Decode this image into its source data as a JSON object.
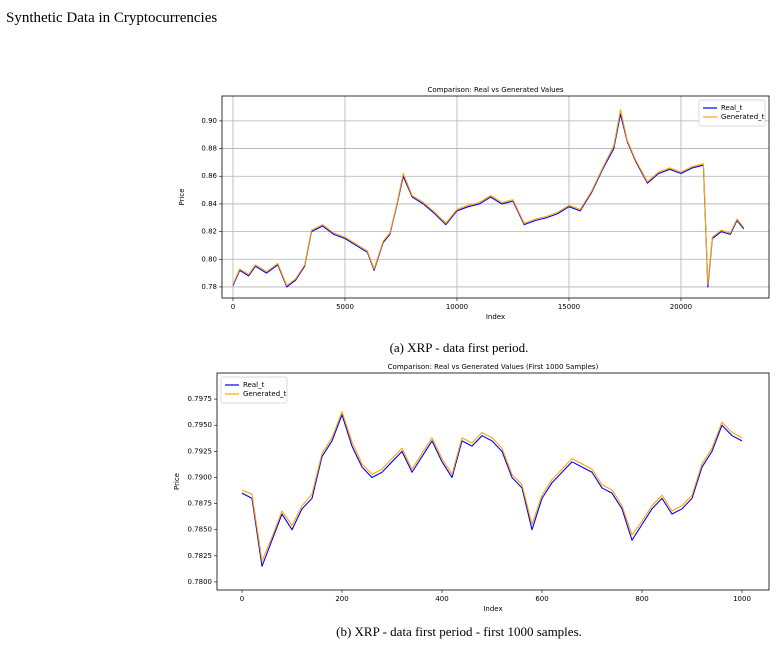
{
  "header": "Synthetic Data in Cryptocurrencies",
  "chart_data": [
    {
      "type": "line",
      "title": "Comparison: Real vs Generated Values",
      "xlabel": "Index",
      "ylabel": "Price",
      "caption": "(a) XRP - data first period.",
      "grid": true,
      "legend": "upper right",
      "xlim": [
        -491,
        23929
      ],
      "xticks": [
        0,
        5000,
        10000,
        15000,
        20000
      ],
      "ylim": [
        0.772,
        0.918
      ],
      "yticks": [
        0.78,
        {
          "value": 0.8,
          "label": "0.80"
        },
        0.82,
        0.84,
        0.86,
        0.88,
        {
          "value": 0.9,
          "label": "0.90"
        }
      ],
      "x": [
        0,
        300,
        700,
        1000,
        1500,
        2000,
        2400,
        2800,
        3200,
        3500,
        4000,
        4500,
        5000,
        5500,
        6000,
        6300,
        6700,
        7000,
        7300,
        7600,
        8000,
        8500,
        9000,
        9500,
        10000,
        10500,
        11000,
        11500,
        12000,
        12500,
        13000,
        13500,
        14000,
        14500,
        15000,
        15500,
        16000,
        16500,
        17000,
        17300,
        17600,
        18000,
        18500,
        19000,
        19500,
        20000,
        20500,
        21000,
        21200,
        21400,
        21800,
        22200,
        22500,
        22800
      ],
      "series": [
        {
          "name": "Real_t",
          "color": "#0000ff",
          "values": [
            0.781,
            0.792,
            0.788,
            0.795,
            0.79,
            0.796,
            0.78,
            0.785,
            0.795,
            0.82,
            0.824,
            0.818,
            0.815,
            0.81,
            0.805,
            0.792,
            0.812,
            0.818,
            0.838,
            0.86,
            0.845,
            0.84,
            0.833,
            0.825,
            0.835,
            0.838,
            0.84,
            0.845,
            0.84,
            0.842,
            0.825,
            0.828,
            0.83,
            0.833,
            0.838,
            0.835,
            0.848,
            0.865,
            0.88,
            0.905,
            0.885,
            0.87,
            0.855,
            0.862,
            0.865,
            0.862,
            0.866,
            0.868,
            0.78,
            0.815,
            0.82,
            0.818,
            0.828,
            0.822
          ]
        },
        {
          "name": "Generated_t",
          "color": "#ffa500",
          "values": [
            0.782,
            0.793,
            0.789,
            0.796,
            0.791,
            0.797,
            0.781,
            0.786,
            0.796,
            0.821,
            0.825,
            0.819,
            0.816,
            0.811,
            0.806,
            0.793,
            0.813,
            0.819,
            0.839,
            0.862,
            0.846,
            0.841,
            0.834,
            0.826,
            0.836,
            0.839,
            0.841,
            0.846,
            0.841,
            0.843,
            0.826,
            0.829,
            0.831,
            0.834,
            0.839,
            0.836,
            0.849,
            0.866,
            0.882,
            0.908,
            0.886,
            0.871,
            0.856,
            0.863,
            0.866,
            0.863,
            0.867,
            0.869,
            0.782,
            0.816,
            0.821,
            0.819,
            0.829,
            0.823
          ]
        }
      ]
    },
    {
      "type": "line",
      "title": "Comparison: Real vs Generated Values (First 1000 Samples)",
      "xlabel": "Index",
      "ylabel": "Price",
      "caption": "(b) XRP - data first period - first 1000 samples.",
      "grid": false,
      "legend": "upper left",
      "xlim": [
        -50,
        1054
      ],
      "xticks": [
        0,
        200,
        400,
        600,
        800,
        1000
      ],
      "ylim": [
        0.77923,
        0.8
      ],
      "yticks": [
        {
          "value": 0.78,
          "label": "0.7800"
        },
        0.7825,
        {
          "value": 0.785,
          "label": "0.7850"
        },
        0.7875,
        {
          "value": 0.79,
          "label": "0.7900"
        },
        0.7925,
        {
          "value": 0.795,
          "label": "0.7950"
        },
        0.7975
      ],
      "x": [
        0,
        20,
        40,
        60,
        80,
        100,
        120,
        140,
        160,
        180,
        200,
        220,
        240,
        260,
        280,
        300,
        320,
        340,
        360,
        380,
        400,
        420,
        440,
        460,
        480,
        500,
        520,
        540,
        560,
        580,
        600,
        620,
        640,
        660,
        680,
        700,
        720,
        740,
        760,
        780,
        800,
        820,
        840,
        860,
        880,
        900,
        920,
        940,
        960,
        980,
        1000
      ],
      "series": [
        {
          "name": "Real_t",
          "color": "#0000ff",
          "values": [
            0.7885,
            0.788,
            0.7815,
            0.784,
            0.7865,
            0.785,
            0.787,
            0.788,
            0.792,
            0.7935,
            0.796,
            0.793,
            0.791,
            0.79,
            0.7905,
            0.7915,
            0.7925,
            0.7905,
            0.792,
            0.7935,
            0.7915,
            0.79,
            0.7935,
            0.793,
            0.794,
            0.7935,
            0.7925,
            0.79,
            0.789,
            0.785,
            0.788,
            0.7895,
            0.7905,
            0.7915,
            0.791,
            0.7905,
            0.789,
            0.7885,
            0.787,
            0.784,
            0.7855,
            0.787,
            0.788,
            0.7865,
            0.787,
            0.788,
            0.791,
            0.7925,
            0.795,
            0.794,
            0.7935
          ]
        },
        {
          "name": "Generated_t",
          "color": "#ffa500",
          "values": [
            0.7888,
            0.7884,
            0.782,
            0.7843,
            0.7868,
            0.7854,
            0.7873,
            0.7884,
            0.7923,
            0.7938,
            0.7963,
            0.7934,
            0.7913,
            0.7903,
            0.7908,
            0.7918,
            0.7928,
            0.7908,
            0.7923,
            0.7938,
            0.7918,
            0.7903,
            0.7938,
            0.7933,
            0.7943,
            0.7938,
            0.7928,
            0.7903,
            0.7893,
            0.7855,
            0.7883,
            0.7898,
            0.7908,
            0.7918,
            0.7913,
            0.7908,
            0.7893,
            0.7888,
            0.7873,
            0.7845,
            0.7858,
            0.7873,
            0.7883,
            0.7868,
            0.7873,
            0.7883,
            0.7913,
            0.7928,
            0.7953,
            0.7943,
            0.7938
          ]
        }
      ]
    }
  ]
}
